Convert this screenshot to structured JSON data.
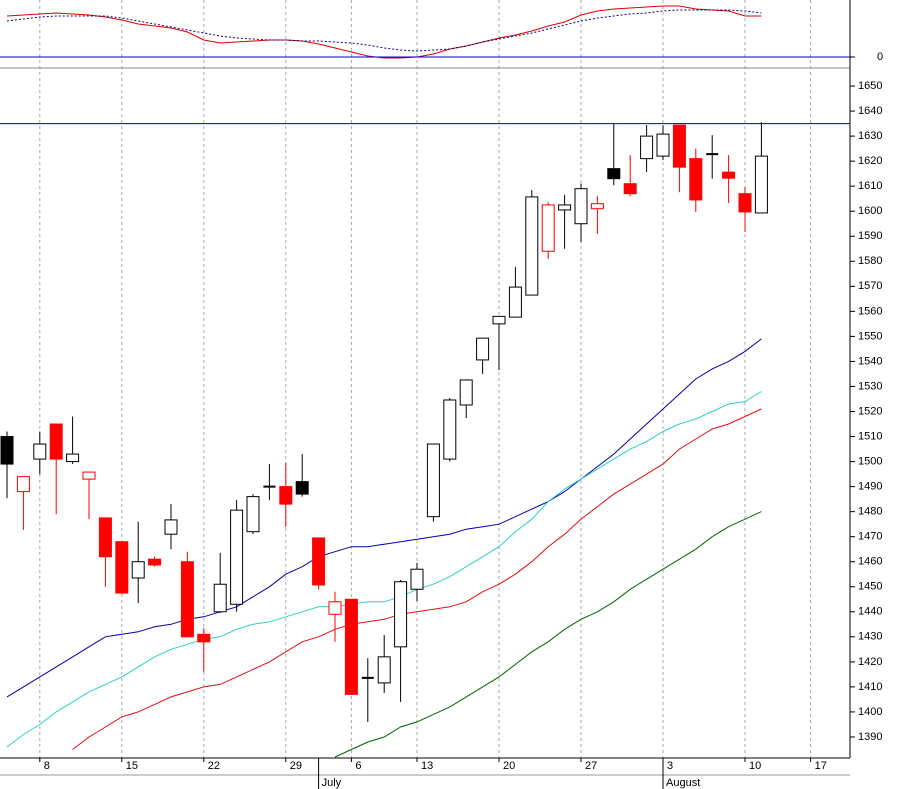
{
  "chart_data": [
    {
      "type": "line",
      "ylim": [
        -11,
        57
      ],
      "yticks": [
        0
      ],
      "hline_color": "#0000cc",
      "series": [
        {
          "color": "#dd0000",
          "style": "solid",
          "values": [
            41,
            42,
            43,
            44,
            43,
            42,
            40,
            37,
            33,
            31,
            29,
            25,
            17,
            14,
            15,
            16,
            17,
            17,
            16,
            13,
            9,
            5,
            1,
            -1,
            -1,
            0,
            3,
            8,
            11,
            15,
            19,
            22,
            26,
            31,
            35,
            42,
            46,
            48,
            49,
            50,
            51,
            51,
            48,
            47,
            46,
            41,
            41,
            null,
            null,
            null
          ]
        },
        {
          "color": "#000099",
          "style": "dotted",
          "values": [
            36,
            38,
            40,
            41,
            41,
            41,
            41,
            39,
            36,
            33,
            30,
            27,
            24,
            21,
            19,
            18,
            17,
            17,
            16,
            16,
            15,
            14,
            12,
            9,
            7,
            6,
            7,
            8,
            11,
            15,
            18,
            21,
            24,
            28,
            32,
            36,
            39,
            41,
            43,
            44,
            46,
            47,
            47,
            47,
            47,
            46,
            44,
            null,
            null,
            null
          ]
        }
      ]
    },
    {
      "type": "candlestick",
      "ylim": [
        1381.6,
        1657.2
      ],
      "yticks": [
        1390,
        1400,
        1410,
        1420,
        1430,
        1440,
        1450,
        1460,
        1470,
        1480,
        1490,
        1500,
        1510,
        1520,
        1530,
        1540,
        1550,
        1560,
        1570,
        1580,
        1590,
        1600,
        1610,
        1620,
        1630,
        1640,
        1650
      ],
      "reference_line": 1635,
      "reference_color": "#0000cc",
      "categories": [
        null,
        null,
        "8",
        null,
        null,
        null,
        null,
        "15",
        null,
        null,
        null,
        null,
        "22",
        null,
        null,
        null,
        null,
        "29",
        null,
        null,
        null,
        "6",
        null,
        null,
        null,
        "13",
        null,
        null,
        null,
        null,
        "20",
        null,
        null,
        null,
        null,
        "27",
        null,
        null,
        null,
        null,
        "3",
        null,
        null,
        null,
        null,
        "10",
        null,
        null,
        null,
        "17"
      ],
      "months": [
        null,
        null,
        null,
        null,
        null,
        null,
        null,
        null,
        null,
        null,
        null,
        null,
        null,
        null,
        null,
        null,
        null,
        null,
        null,
        "July",
        null,
        null,
        null,
        null,
        null,
        null,
        null,
        null,
        null,
        null,
        null,
        null,
        null,
        null,
        null,
        null,
        null,
        null,
        null,
        null,
        "August",
        null,
        null,
        null,
        null,
        null,
        null,
        null,
        null,
        null
      ],
      "open": [
        1510,
        1488,
        1501,
        1515,
        1500,
        1493,
        1477.5,
        1468,
        1453.5,
        1461,
        1471,
        1460,
        1431,
        1440,
        1443,
        1472,
        1490,
        1490,
        1492,
        1469.5,
        1439,
        1445,
        1413.6,
        1411.6,
        1426,
        1449,
        1478,
        1501,
        1522.6,
        1540.6,
        1555,
        1557.7,
        1566.5,
        1584,
        1600.5,
        1595,
        1601,
        1617,
        1611,
        1621,
        1622,
        1634.4,
        1621,
        1622.8,
        1615.6,
        1607,
        1599.3,
        null,
        null,
        null
      ],
      "high": [
        1512,
        1494,
        1512,
        1515,
        1518,
        1496,
        1477.5,
        1468,
        1476,
        1462,
        1483,
        1464,
        1433.5,
        1463.5,
        1484.6,
        1487,
        1499,
        1499.5,
        1503,
        1469.5,
        1448,
        1445,
        1421.5,
        1430.7,
        1452.7,
        1459.5,
        1507,
        1525.4,
        1532.6,
        1549.3,
        1558,
        1577.7,
        1608.5,
        1603.6,
        1606.5,
        1611,
        1606,
        1634.8,
        1622.4,
        1634.4,
        1634.4,
        1634.4,
        1625,
        1630.4,
        1622.4,
        1609.6,
        1635.6,
        null,
        null,
        null
      ],
      "low": [
        1485.4,
        1472.7,
        1495,
        1479,
        1499,
        1477,
        1450,
        1447,
        1443.5,
        1458,
        1465,
        1430,
        1416,
        1439.5,
        1440,
        1471,
        1484.6,
        1474,
        1486,
        1449,
        1428,
        1407,
        1396,
        1407.6,
        1404,
        1444.3,
        1476,
        1500,
        1517.4,
        1535,
        1536.6,
        1557.7,
        1566.5,
        1581,
        1585,
        1587.7,
        1591,
        1610.4,
        1606,
        1615.6,
        1620.4,
        1607.6,
        1599.7,
        1613,
        1603.3,
        1591.7,
        1599.3,
        null,
        null,
        null
      ],
      "close": [
        1499,
        1494,
        1507,
        1501,
        1503,
        1495.8,
        1462,
        1447.5,
        1460,
        1458.7,
        1476.7,
        1430,
        1428,
        1451,
        1480.6,
        1486,
        1490,
        1483,
        1487,
        1450.7,
        1444,
        1407,
        1413.6,
        1422,
        1452,
        1457,
        1507,
        1524.6,
        1532.6,
        1549.3,
        1558,
        1569.7,
        1605.7,
        1602.5,
        1602.5,
        1609,
        1603,
        1613,
        1607,
        1630,
        1630.8,
        1617.6,
        1604.5,
        1622.8,
        1613.2,
        1599.7,
        1622,
        null,
        null,
        null
      ],
      "candle_colors": [
        "#000000",
        "#ff0000",
        "#000000",
        "#ff0000",
        "#000000",
        "#ff0000",
        "#ff0000",
        "#ff0000",
        "#000000",
        "#ff0000",
        "#000000",
        "#ff0000",
        "#ff0000",
        "#000000",
        "#000000",
        "#000000",
        "#000000",
        "#ff0000",
        "#000000",
        "#ff0000",
        "#ff0000",
        "#ff0000",
        "#000000",
        "#000000",
        "#000000",
        "#000000",
        "#000000",
        "#000000",
        "#000000",
        "#000000",
        "#000000",
        "#000000",
        "#000000",
        "#ff0000",
        "#000000",
        "#000000",
        "#ff0000",
        "#000000",
        "#ff0000",
        "#000000",
        "#000000",
        "#ff0000",
        "#ff0000",
        "#000000",
        "#ff0000",
        "#ff0000",
        "#000000",
        null,
        null,
        null
      ],
      "series": [
        {
          "color": "#0000aa",
          "values": [
            1406,
            1410,
            1414,
            1418,
            1422,
            1426,
            1430,
            1431,
            1432,
            1434,
            1435,
            1437,
            1438,
            1440,
            1442,
            1446,
            1450,
            1455,
            1458,
            1462,
            1464,
            1466,
            1466,
            1467,
            1468,
            1469,
            1470,
            1471,
            1473,
            1474,
            1475,
            1478,
            1481,
            1484,
            1488,
            1493,
            1498,
            1503,
            1509,
            1515,
            1521,
            1527,
            1533,
            1537,
            1540,
            1544,
            1549,
            null,
            null,
            null
          ]
        },
        {
          "color": "#33cccc",
          "values": [
            1386,
            1391,
            1395,
            1400,
            1404,
            1408,
            1411,
            1414,
            1418,
            1422,
            1425,
            1427,
            1429,
            1430,
            1433,
            1435,
            1436,
            1438,
            1440,
            1442,
            1442,
            1443,
            1444,
            1444,
            1446,
            1449,
            1451,
            1454,
            1458,
            1462,
            1466,
            1472,
            1477,
            1484,
            1489,
            1493,
            1497,
            1501,
            1505,
            1508,
            1512,
            1515,
            1517,
            1520,
            1523,
            1524,
            1528,
            null,
            null,
            null
          ]
        },
        {
          "color": "#dd1111",
          "values": [
            null,
            null,
            null,
            null,
            1385,
            1390,
            1394,
            1398,
            1400,
            1403,
            1406,
            1408,
            1410,
            1411,
            1414,
            1417,
            1420,
            1424,
            1428,
            1430,
            1433,
            1435,
            1436,
            1437,
            1439,
            1440,
            1441,
            1442,
            1444,
            1448,
            1451,
            1455,
            1460,
            1466,
            1471,
            1477,
            1482,
            1487,
            1491,
            1495,
            1499,
            1505,
            1509,
            1513,
            1515,
            1518,
            1521,
            null,
            null,
            null
          ]
        },
        {
          "color": "#006600",
          "values": [
            null,
            null,
            null,
            null,
            null,
            null,
            null,
            null,
            null,
            null,
            null,
            null,
            null,
            null,
            null,
            null,
            null,
            null,
            null,
            null,
            1382,
            1385,
            1388,
            1390,
            1394,
            1396,
            1399,
            1402,
            1406,
            1410,
            1414,
            1419,
            1424,
            1428,
            1433,
            1437,
            1440,
            1444,
            1449,
            1453,
            1457,
            1461,
            1465,
            1470,
            1474,
            1477,
            1480,
            null,
            null,
            null
          ]
        }
      ]
    }
  ]
}
